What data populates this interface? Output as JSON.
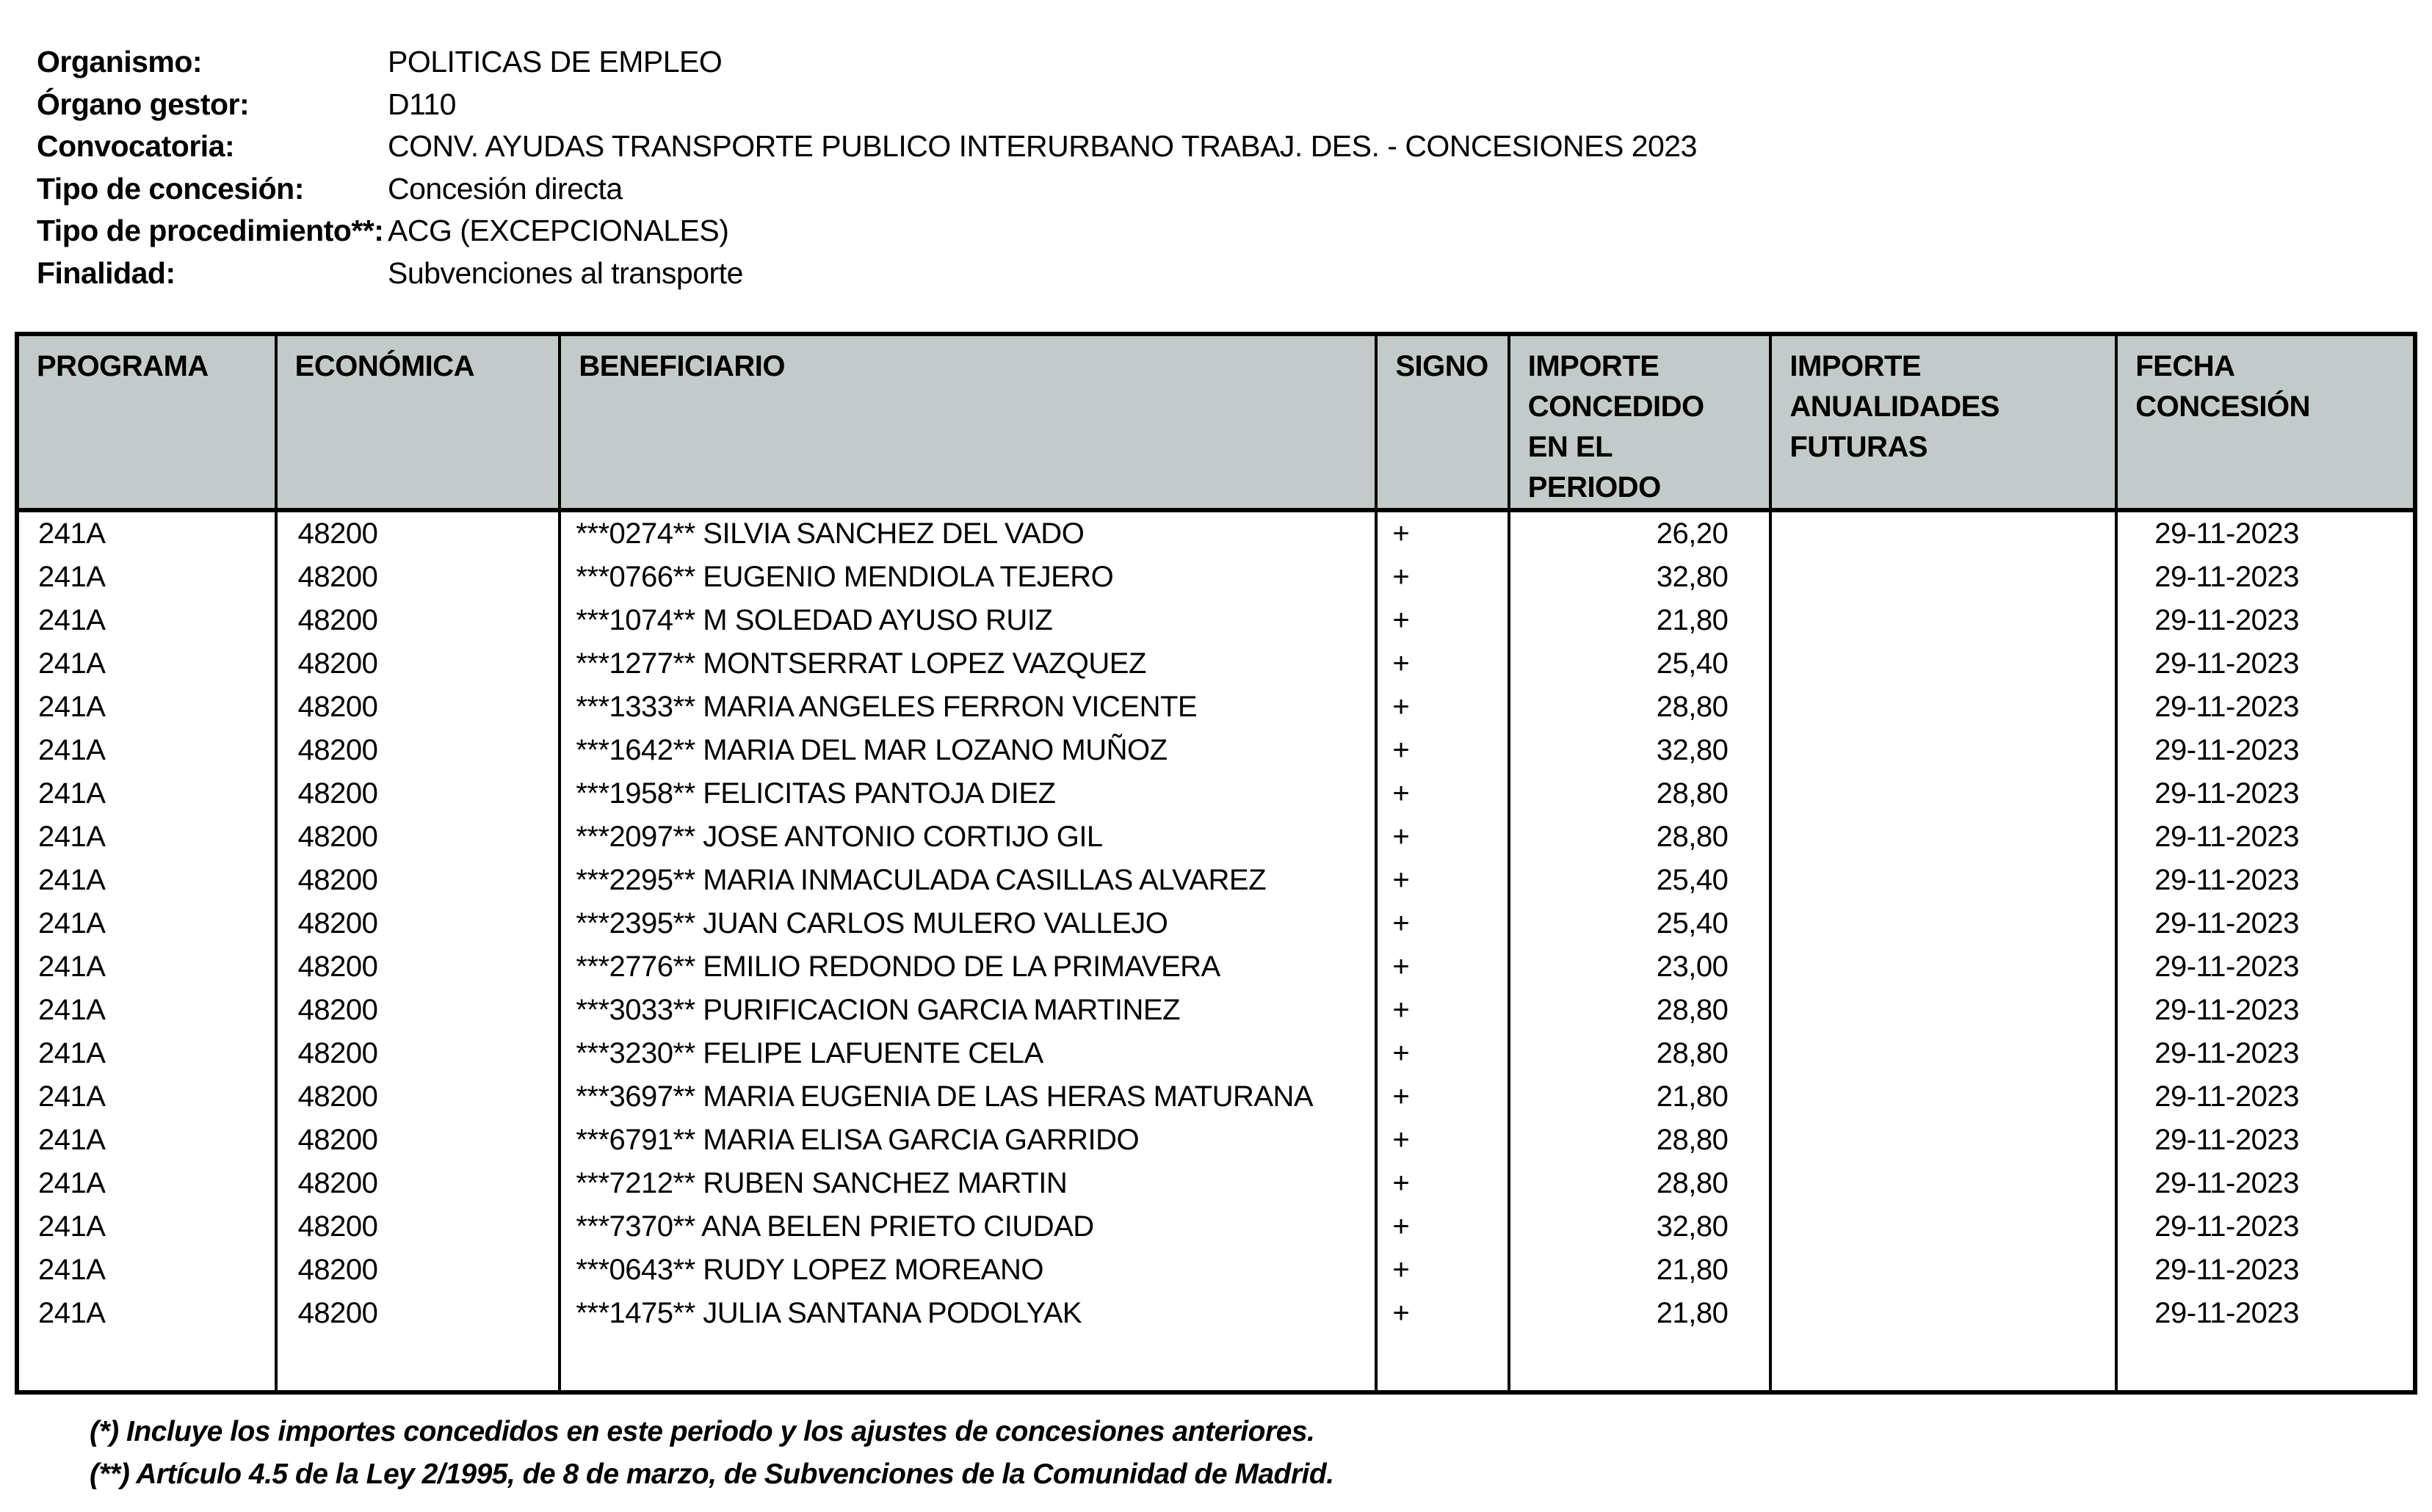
{
  "colors": {
    "header_bg": "#c2cbc9",
    "border": "#000000",
    "text": "#000000"
  },
  "info": {
    "rows": [
      {
        "key": "organismo",
        "label": "Organismo:",
        "value": "POLITICAS DE EMPLEO"
      },
      {
        "key": "organo-gestor",
        "label": "Órgano gestor:",
        "value": "D110"
      },
      {
        "key": "convocatoria",
        "label": "Convocatoria:",
        "value": "CONV. AYUDAS TRANSPORTE PUBLICO INTERURBANO TRABAJ. DES. - CONCESIONES 2023"
      },
      {
        "key": "tipo-concesion",
        "label": "Tipo de concesión:",
        "value": "Concesión directa"
      },
      {
        "key": "tipo-procedimiento",
        "label": "Tipo de procedimiento**:",
        "value": "ACG (EXCEPCIONALES)"
      },
      {
        "key": "finalidad",
        "label": "Finalidad:",
        "value": "Subvenciones al transporte"
      }
    ]
  },
  "table": {
    "headers": {
      "programa": "PROGRAMA",
      "economica": "ECONÓMICA",
      "beneficiario": "BENEFICIARIO",
      "signo": "SIGNO",
      "importe_concedido": "IMPORTE CONCEDIDO EN EL PERIODO",
      "importe_anualidades": "IMPORTE ANUALIDADES FUTURAS",
      "fecha_concesion": "FECHA CONCESIÓN"
    },
    "rows": [
      {
        "programa": "241A",
        "economica": "48200",
        "beneficiario": "***0274** SILVIA SANCHEZ DEL VADO",
        "signo": "+",
        "importe_concedido": "26,20",
        "importe_anualidades": "",
        "fecha_concesion": "29-11-2023"
      },
      {
        "programa": "241A",
        "economica": "48200",
        "beneficiario": "***0766** EUGENIO MENDIOLA TEJERO",
        "signo": "+",
        "importe_concedido": "32,80",
        "importe_anualidades": "",
        "fecha_concesion": "29-11-2023"
      },
      {
        "programa": "241A",
        "economica": "48200",
        "beneficiario": "***1074** M SOLEDAD AYUSO RUIZ",
        "signo": "+",
        "importe_concedido": "21,80",
        "importe_anualidades": "",
        "fecha_concesion": "29-11-2023"
      },
      {
        "programa": "241A",
        "economica": "48200",
        "beneficiario": "***1277** MONTSERRAT LOPEZ VAZQUEZ",
        "signo": "+",
        "importe_concedido": "25,40",
        "importe_anualidades": "",
        "fecha_concesion": "29-11-2023"
      },
      {
        "programa": "241A",
        "economica": "48200",
        "beneficiario": "***1333** MARIA ANGELES FERRON VICENTE",
        "signo": "+",
        "importe_concedido": "28,80",
        "importe_anualidades": "",
        "fecha_concesion": "29-11-2023"
      },
      {
        "programa": "241A",
        "economica": "48200",
        "beneficiario": "***1642** MARIA DEL MAR LOZANO MUÑOZ",
        "signo": "+",
        "importe_concedido": "32,80",
        "importe_anualidades": "",
        "fecha_concesion": "29-11-2023"
      },
      {
        "programa": "241A",
        "economica": "48200",
        "beneficiario": "***1958** FELICITAS PANTOJA DIEZ",
        "signo": "+",
        "importe_concedido": "28,80",
        "importe_anualidades": "",
        "fecha_concesion": "29-11-2023"
      },
      {
        "programa": "241A",
        "economica": "48200",
        "beneficiario": "***2097** JOSE ANTONIO CORTIJO GIL",
        "signo": "+",
        "importe_concedido": "28,80",
        "importe_anualidades": "",
        "fecha_concesion": "29-11-2023"
      },
      {
        "programa": "241A",
        "economica": "48200",
        "beneficiario": "***2295** MARIA INMACULADA CASILLAS ALVAREZ",
        "signo": "+",
        "importe_concedido": "25,40",
        "importe_anualidades": "",
        "fecha_concesion": "29-11-2023"
      },
      {
        "programa": "241A",
        "economica": "48200",
        "beneficiario": "***2395** JUAN CARLOS MULERO VALLEJO",
        "signo": "+",
        "importe_concedido": "25,40",
        "importe_anualidades": "",
        "fecha_concesion": "29-11-2023"
      },
      {
        "programa": "241A",
        "economica": "48200",
        "beneficiario": "***2776** EMILIO REDONDO DE LA PRIMAVERA",
        "signo": "+",
        "importe_concedido": "23,00",
        "importe_anualidades": "",
        "fecha_concesion": "29-11-2023"
      },
      {
        "programa": "241A",
        "economica": "48200",
        "beneficiario": "***3033** PURIFICACION GARCIA MARTINEZ",
        "signo": "+",
        "importe_concedido": "28,80",
        "importe_anualidades": "",
        "fecha_concesion": "29-11-2023"
      },
      {
        "programa": "241A",
        "economica": "48200",
        "beneficiario": "***3230** FELIPE LAFUENTE CELA",
        "signo": "+",
        "importe_concedido": "28,80",
        "importe_anualidades": "",
        "fecha_concesion": "29-11-2023"
      },
      {
        "programa": "241A",
        "economica": "48200",
        "beneficiario": "***3697** MARIA EUGENIA DE LAS HERAS MATURANA",
        "signo": "+",
        "importe_concedido": "21,80",
        "importe_anualidades": "",
        "fecha_concesion": "29-11-2023"
      },
      {
        "programa": "241A",
        "economica": "48200",
        "beneficiario": "***6791** MARIA ELISA GARCIA GARRIDO",
        "signo": "+",
        "importe_concedido": "28,80",
        "importe_anualidades": "",
        "fecha_concesion": "29-11-2023"
      },
      {
        "programa": "241A",
        "economica": "48200",
        "beneficiario": "***7212** RUBEN SANCHEZ MARTIN",
        "signo": "+",
        "importe_concedido": "28,80",
        "importe_anualidades": "",
        "fecha_concesion": "29-11-2023"
      },
      {
        "programa": "241A",
        "economica": "48200",
        "beneficiario": "***7370** ANA BELEN PRIETO CIUDAD",
        "signo": "+",
        "importe_concedido": "32,80",
        "importe_anualidades": "",
        "fecha_concesion": "29-11-2023"
      },
      {
        "programa": "241A",
        "economica": "48200",
        "beneficiario": "***0643** RUDY LOPEZ MOREANO",
        "signo": "+",
        "importe_concedido": "21,80",
        "importe_anualidades": "",
        "fecha_concesion": "29-11-2023"
      },
      {
        "programa": "241A",
        "economica": "48200",
        "beneficiario": "***1475** JULIA SANTANA PODOLYAK",
        "signo": "+",
        "importe_concedido": "21,80",
        "importe_anualidades": "",
        "fecha_concesion": "29-11-2023"
      }
    ]
  },
  "footnotes": [
    "(*) Incluye los importes concedidos en este periodo y los ajustes de concesiones anteriores.",
    "(**) Artículo 4.5 de la Ley 2/1995, de 8 de marzo, de Subvenciones de la Comunidad de Madrid."
  ]
}
